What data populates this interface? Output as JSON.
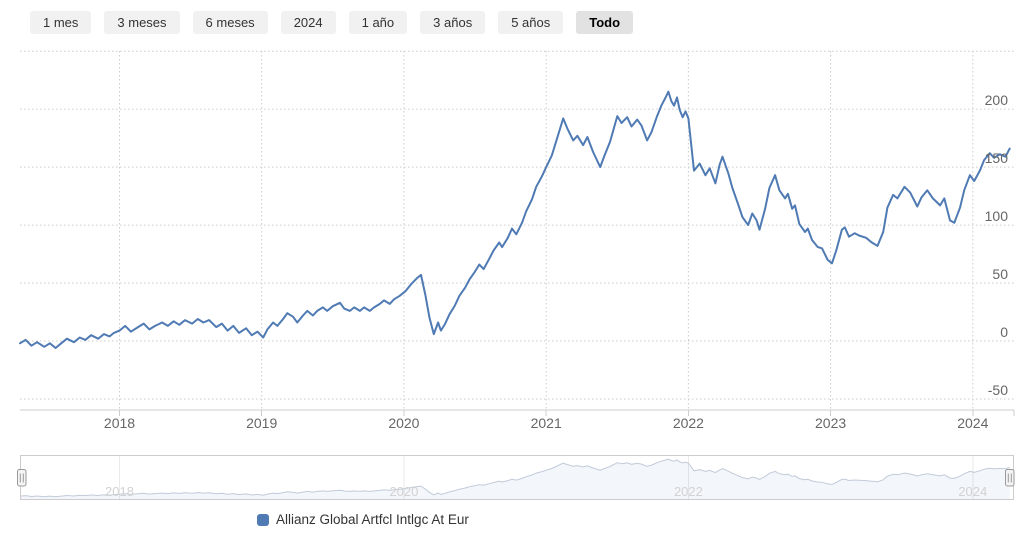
{
  "range_selector": {
    "buttons": [
      {
        "label": "1 mes",
        "selected": false
      },
      {
        "label": "3 meses",
        "selected": false
      },
      {
        "label": "6 meses",
        "selected": false
      },
      {
        "label": "2024",
        "selected": false
      },
      {
        "label": "1 año",
        "selected": false
      },
      {
        "label": "3 años",
        "selected": false
      },
      {
        "label": "5 años",
        "selected": false
      },
      {
        "label": "Todo",
        "selected": true
      }
    ]
  },
  "chart_data": {
    "type": "line",
    "title": "",
    "xlabel": "",
    "ylabel": "",
    "xlim": [
      2017.3,
      2024.29
    ],
    "ylim": [
      -59.5,
      251
    ],
    "grid": "dotted",
    "legend_position": "bottom",
    "x_ticks": [
      {
        "value": 2018,
        "label": "2018"
      },
      {
        "value": 2019,
        "label": "2019"
      },
      {
        "value": 2020,
        "label": "2020"
      },
      {
        "value": 2021,
        "label": "2021"
      },
      {
        "value": 2022,
        "label": "2022"
      },
      {
        "value": 2023,
        "label": "2023"
      },
      {
        "value": 2024,
        "label": "2024"
      }
    ],
    "y_ticks": [
      {
        "value": -50,
        "label": "-50"
      },
      {
        "value": 0,
        "label": "0"
      },
      {
        "value": 50,
        "label": "50"
      },
      {
        "value": 100,
        "label": "100"
      },
      {
        "value": 150,
        "label": "150"
      },
      {
        "value": 200,
        "label": "200"
      },
      {
        "value": 250,
        "label": ""
      }
    ],
    "series": [
      {
        "name": "Allianz Global Artfcl Intlgc At Eur",
        "color": "#4f7ab3",
        "x": [
          2017.3,
          2017.34,
          2017.38,
          2017.42,
          2017.47,
          2017.51,
          2017.55,
          2017.59,
          2017.63,
          2017.68,
          2017.72,
          2017.76,
          2017.8,
          2017.85,
          2017.89,
          2017.93,
          2017.96,
          2018.0,
          2018.04,
          2018.08,
          2018.13,
          2018.17,
          2018.21,
          2018.25,
          2018.3,
          2018.34,
          2018.38,
          2018.42,
          2018.46,
          2018.51,
          2018.55,
          2018.59,
          2018.63,
          2018.68,
          2018.72,
          2018.76,
          2018.8,
          2018.84,
          2018.89,
          2018.93,
          2018.97,
          2019.01,
          2019.04,
          2019.08,
          2019.11,
          2019.15,
          2019.18,
          2019.22,
          2019.25,
          2019.29,
          2019.32,
          2019.36,
          2019.39,
          2019.43,
          2019.46,
          2019.5,
          2019.55,
          2019.58,
          2019.62,
          2019.65,
          2019.69,
          2019.72,
          2019.76,
          2019.79,
          2019.83,
          2019.86,
          2019.9,
          2019.93,
          2019.97,
          2020.01,
          2020.05,
          2020.09,
          2020.12,
          2020.15,
          2020.18,
          2020.21,
          2020.24,
          2020.26,
          2020.29,
          2020.32,
          2020.36,
          2020.39,
          2020.43,
          2020.46,
          2020.5,
          2020.53,
          2020.56,
          2020.6,
          2020.63,
          2020.67,
          2020.69,
          2020.73,
          2020.76,
          2020.79,
          2020.83,
          2020.86,
          2020.9,
          2020.93,
          2020.97,
          2021.0,
          2021.04,
          2021.07,
          2021.12,
          2021.15,
          2021.19,
          2021.22,
          2021.26,
          2021.29,
          2021.33,
          2021.38,
          2021.41,
          2021.45,
          2021.5,
          2021.53,
          2021.57,
          2021.6,
          2021.64,
          2021.67,
          2021.71,
          2021.74,
          2021.78,
          2021.81,
          2021.84,
          2021.86,
          2021.88,
          2021.9,
          2021.92,
          2021.94,
          2021.96,
          2021.98,
          2022.0,
          2022.04,
          2022.08,
          2022.12,
          2022.15,
          2022.19,
          2022.22,
          2022.24,
          2022.28,
          2022.31,
          2022.35,
          2022.38,
          2022.42,
          2022.45,
          2022.48,
          2022.5,
          2022.54,
          2022.57,
          2022.61,
          2022.64,
          2022.68,
          2022.7,
          2022.73,
          2022.75,
          2022.78,
          2022.82,
          2022.84,
          2022.87,
          2022.91,
          2022.94,
          2022.98,
          2023.01,
          2023.04,
          2023.08,
          2023.1,
          2023.13,
          2023.17,
          2023.2,
          2023.25,
          2023.29,
          2023.33,
          2023.37,
          2023.4,
          2023.44,
          2023.47,
          2023.52,
          2023.56,
          2023.61,
          2023.64,
          2023.68,
          2023.72,
          2023.77,
          2023.8,
          2023.84,
          2023.87,
          2023.91,
          2023.94,
          2023.98,
          2024.01,
          2024.05,
          2024.08,
          2024.12,
          2024.15,
          2024.19,
          2024.23,
          2024.26
        ],
        "values": [
          -2,
          1,
          -4,
          -1,
          -5,
          -2,
          -6,
          -2,
          2,
          -1,
          3,
          1,
          5,
          2,
          6,
          4,
          7,
          9,
          13,
          8,
          12,
          15,
          10,
          13,
          16,
          13,
          17,
          14,
          18,
          15,
          19,
          16,
          18,
          12,
          15,
          9,
          13,
          7,
          11,
          5,
          8,
          3,
          10,
          16,
          13,
          19,
          24,
          21,
          16,
          22,
          26,
          22,
          26,
          29,
          26,
          30,
          33,
          28,
          26,
          29,
          26,
          29,
          26,
          29,
          32,
          35,
          32,
          36,
          39,
          43,
          49,
          54,
          57,
          40,
          20,
          6,
          16,
          9,
          15,
          23,
          31,
          39,
          46,
          53,
          60,
          66,
          62,
          71,
          78,
          85,
          81,
          89,
          97,
          92,
          102,
          112,
          122,
          133,
          142,
          150,
          160,
          172,
          192,
          183,
          173,
          177,
          169,
          176,
          163,
          150,
          160,
          172,
          194,
          188,
          193,
          185,
          191,
          186,
          173,
          180,
          194,
          203,
          210,
          215,
          207,
          203,
          210,
          199,
          193,
          198,
          192,
          147,
          153,
          143,
          149,
          136,
          152,
          159,
          145,
          132,
          118,
          107,
          100,
          110,
          104,
          96,
          114,
          132,
          143,
          130,
          123,
          127,
          114,
          117,
          101,
          94,
          97,
          87,
          81,
          80,
          70,
          67,
          78,
          96,
          98,
          90,
          93,
          91,
          89,
          85,
          82,
          94,
          115,
          126,
          123,
          133,
          128,
          116,
          124,
          130,
          123,
          117,
          123,
          104,
          102,
          115,
          130,
          143,
          138,
          147,
          156,
          162,
          158,
          161,
          159,
          166
        ]
      }
    ]
  },
  "navigator": {
    "x_labels": [
      {
        "value": 2018,
        "label": "2018"
      },
      {
        "value": 2020,
        "label": "2020"
      },
      {
        "value": 2022,
        "label": "2022"
      },
      {
        "value": 2024,
        "label": "2024"
      }
    ]
  },
  "legend": {
    "items": [
      {
        "label": "Allianz Global Artfcl Intlgc At Eur",
        "color": "#4f7ab3"
      }
    ]
  }
}
